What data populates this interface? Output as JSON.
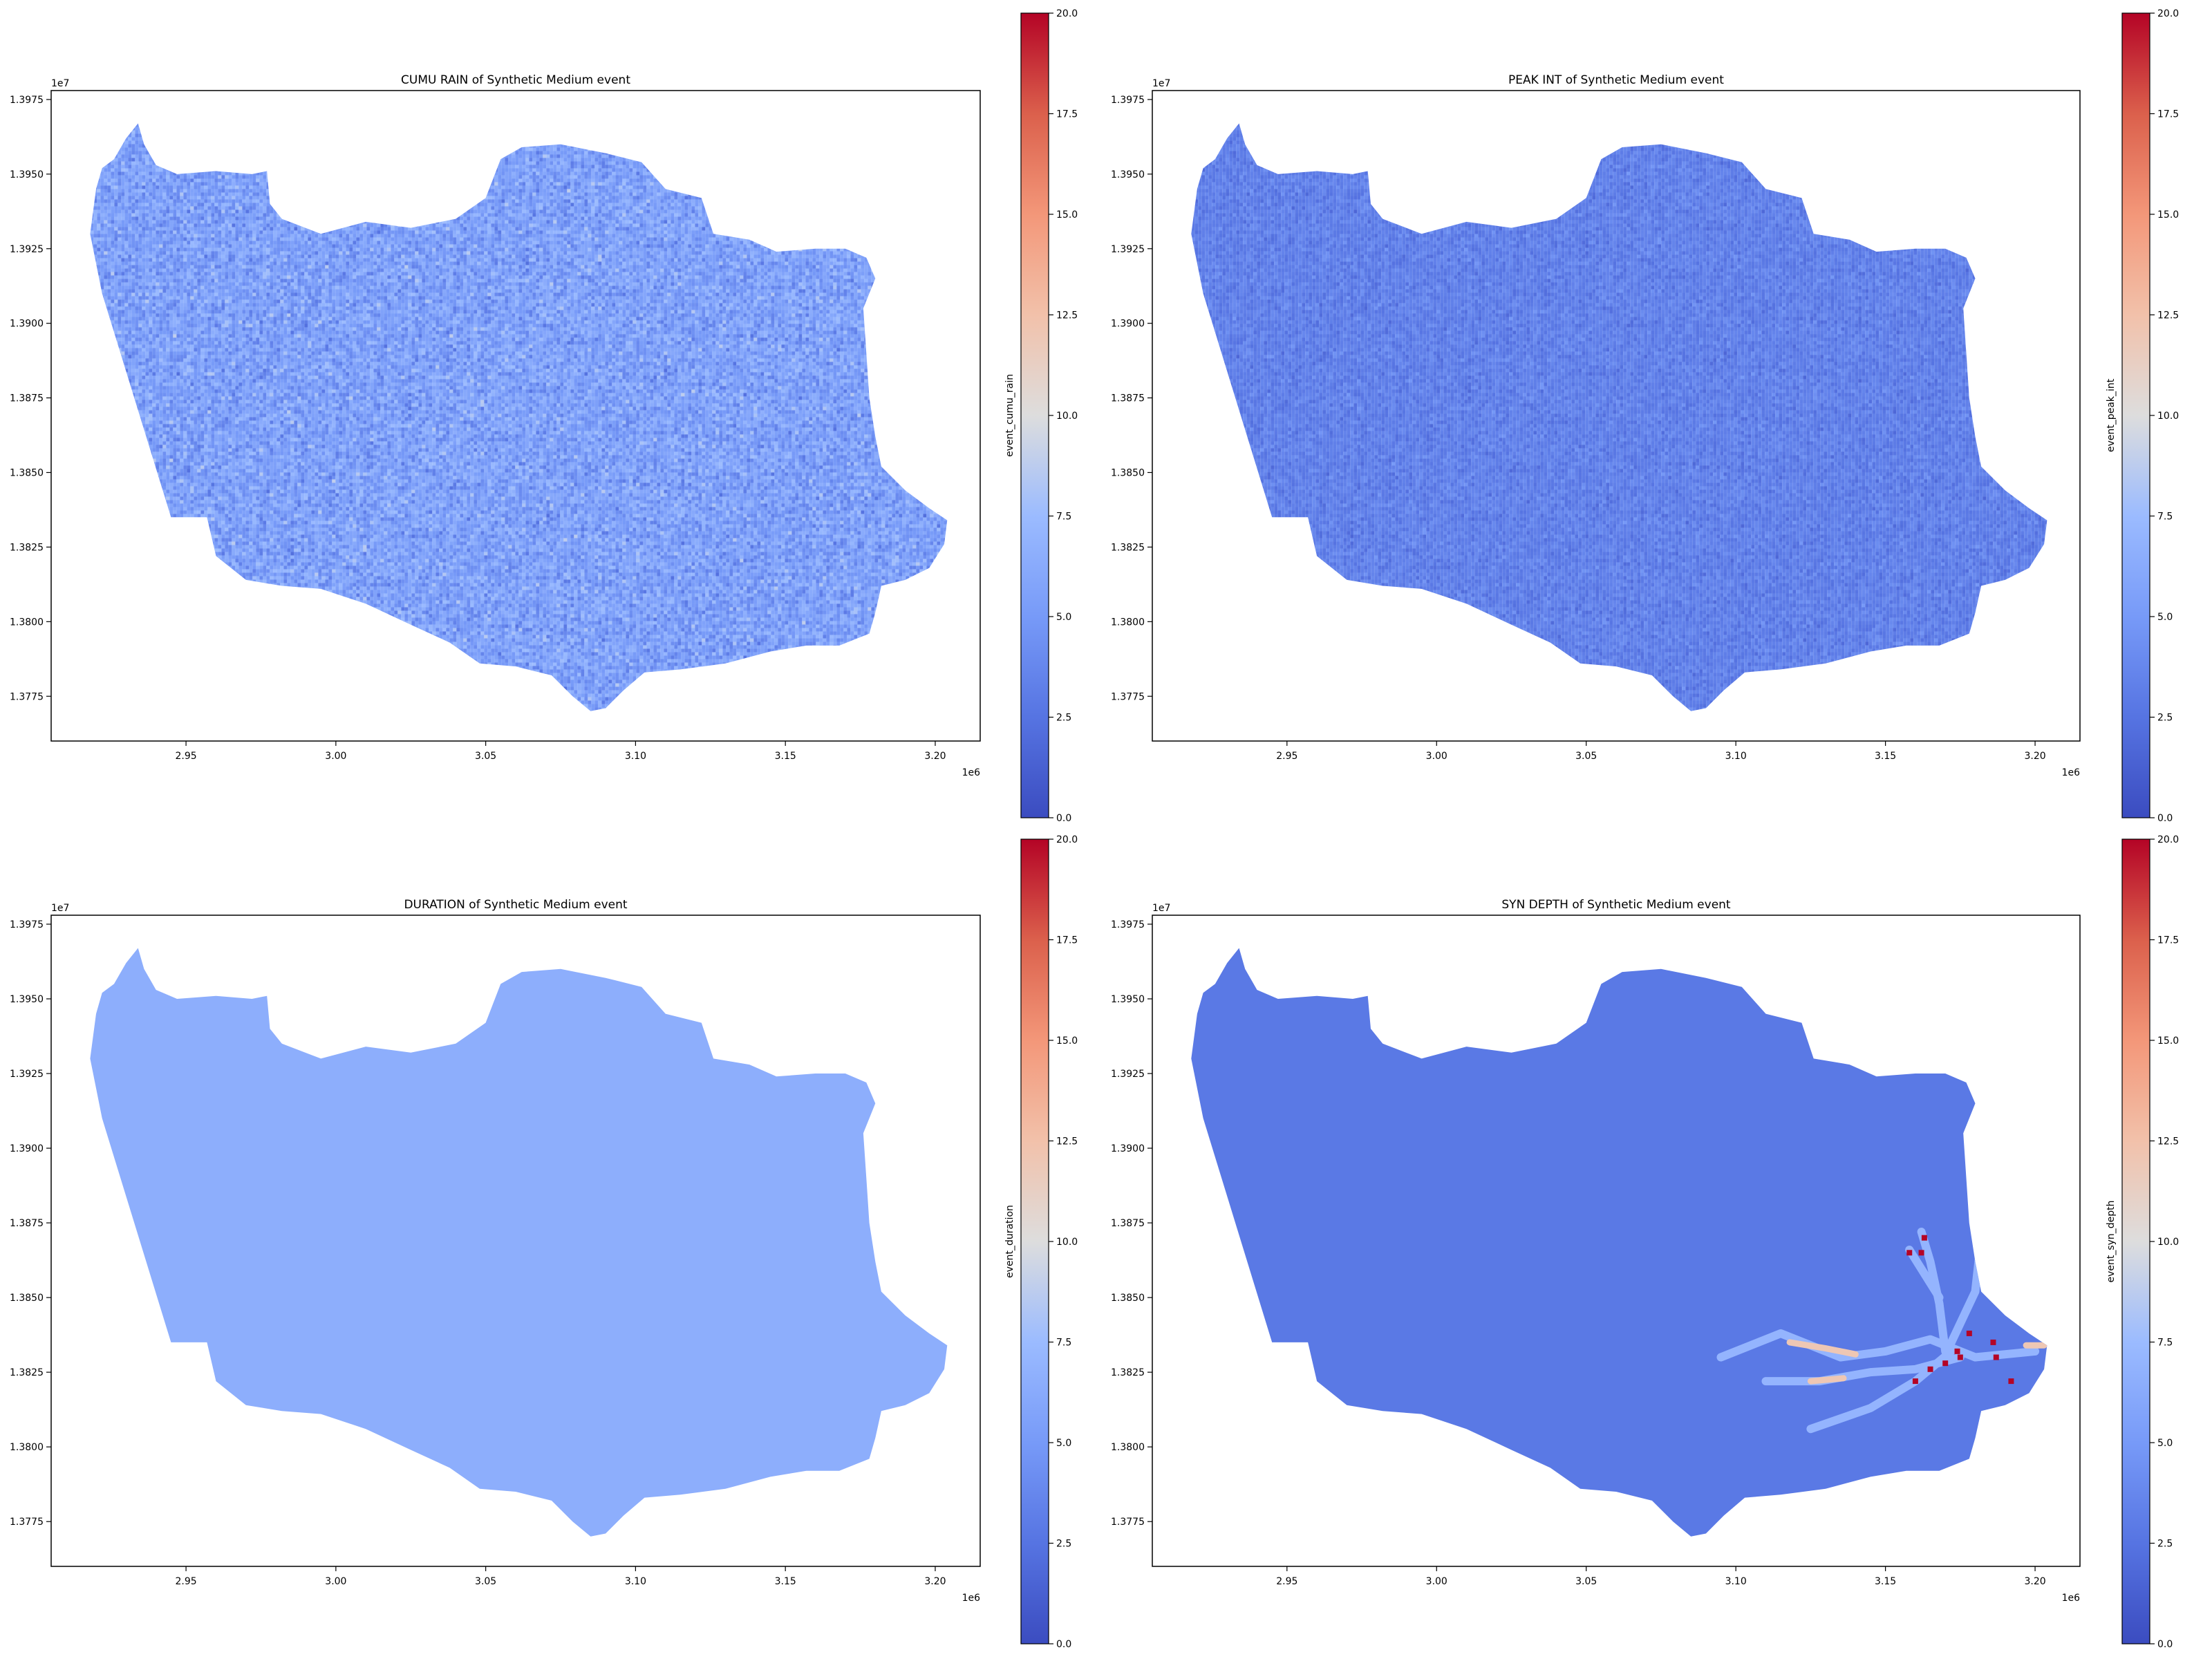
{
  "chart_data": [
    {
      "type": "heatmap",
      "title": "CUMU RAIN of Synthetic Medium event",
      "colorbar_label": "event_cumu_rain",
      "x_multiplier": "1e6",
      "y_multiplier": "1e7",
      "xlim": [
        2.905,
        3.215
      ],
      "ylim": [
        1.376,
        1.3978
      ],
      "x_ticks": [
        2.95,
        3.0,
        3.05,
        3.1,
        3.15,
        3.2
      ],
      "x_tick_labels": [
        "2.95",
        "3.00",
        "3.05",
        "3.10",
        "3.15",
        "3.20"
      ],
      "y_ticks": [
        1.3775,
        1.38,
        1.3825,
        1.385,
        1.3875,
        1.39,
        1.3925,
        1.395,
        1.3975
      ],
      "y_tick_labels": [
        "1.3775",
        "1.3800",
        "1.3825",
        "1.3850",
        "1.3875",
        "1.3900",
        "1.3925",
        "1.3950",
        "1.3975"
      ],
      "clim": [
        0,
        20
      ],
      "colorbar_ticks": [
        0.0,
        2.5,
        5.0,
        7.5,
        10.0,
        12.5,
        15.0,
        17.5,
        20.0
      ],
      "colorbar_tick_labels": [
        "0.0",
        "2.5",
        "5.0",
        "7.5",
        "10.0",
        "12.5",
        "15.0",
        "17.5",
        "20.0"
      ],
      "colormap": "coolwarm",
      "typical_value": 5.5,
      "value_spread": 1.8,
      "pattern": "noise",
      "grid": false
    },
    {
      "type": "heatmap",
      "title": "PEAK INT of Synthetic Medium event",
      "colorbar_label": "event_peak_int",
      "x_multiplier": "1e6",
      "y_multiplier": "1e7",
      "xlim": [
        2.905,
        3.215
      ],
      "ylim": [
        1.376,
        1.3978
      ],
      "x_ticks": [
        2.95,
        3.0,
        3.05,
        3.1,
        3.15,
        3.2
      ],
      "x_tick_labels": [
        "2.95",
        "3.00",
        "3.05",
        "3.10",
        "3.15",
        "3.20"
      ],
      "y_ticks": [
        1.3775,
        1.38,
        1.3825,
        1.385,
        1.3875,
        1.39,
        1.3925,
        1.395,
        1.3975
      ],
      "y_tick_labels": [
        "1.3775",
        "1.3800",
        "1.3825",
        "1.3850",
        "1.3875",
        "1.3900",
        "1.3925",
        "1.3950",
        "1.3975"
      ],
      "clim": [
        0,
        20
      ],
      "colorbar_ticks": [
        0.0,
        2.5,
        5.0,
        7.5,
        10.0,
        12.5,
        15.0,
        17.5,
        20.0
      ],
      "colorbar_tick_labels": [
        "0.0",
        "2.5",
        "5.0",
        "7.5",
        "10.0",
        "12.5",
        "15.0",
        "17.5",
        "20.0"
      ],
      "colormap": "coolwarm",
      "typical_value": 3.3,
      "value_spread": 0.9,
      "pattern": "noise",
      "grid": false
    },
    {
      "type": "heatmap",
      "title": "DURATION of Synthetic Medium event",
      "colorbar_label": "event_duration",
      "x_multiplier": "1e6",
      "y_multiplier": "1e7",
      "xlim": [
        2.905,
        3.215
      ],
      "ylim": [
        1.376,
        1.3978
      ],
      "x_ticks": [
        2.95,
        3.0,
        3.05,
        3.1,
        3.15,
        3.2
      ],
      "x_tick_labels": [
        "2.95",
        "3.00",
        "3.05",
        "3.10",
        "3.15",
        "3.20"
      ],
      "y_ticks": [
        1.3775,
        1.38,
        1.3825,
        1.385,
        1.3875,
        1.39,
        1.3925,
        1.395,
        1.3975
      ],
      "y_tick_labels": [
        "1.3775",
        "1.3800",
        "1.3825",
        "1.3850",
        "1.3875",
        "1.3900",
        "1.3925",
        "1.3950",
        "1.3975"
      ],
      "clim": [
        0,
        20
      ],
      "colorbar_ticks": [
        0.0,
        2.5,
        5.0,
        7.5,
        10.0,
        12.5,
        15.0,
        17.5,
        20.0
      ],
      "colorbar_tick_labels": [
        "0.0",
        "2.5",
        "5.0",
        "7.5",
        "10.0",
        "12.5",
        "15.0",
        "17.5",
        "20.0"
      ],
      "colormap": "coolwarm",
      "typical_value": 6.5,
      "value_spread": 0.1,
      "pattern": "uniform",
      "grid": false
    },
    {
      "type": "heatmap",
      "title": "SYN DEPTH of Synthetic Medium event",
      "colorbar_label": "event_syn_depth",
      "x_multiplier": "1e6",
      "y_multiplier": "1e7",
      "xlim": [
        2.905,
        3.215
      ],
      "ylim": [
        1.376,
        1.3978
      ],
      "x_ticks": [
        2.95,
        3.0,
        3.05,
        3.1,
        3.15,
        3.2
      ],
      "x_tick_labels": [
        "2.95",
        "3.00",
        "3.05",
        "3.10",
        "3.15",
        "3.20"
      ],
      "y_ticks": [
        1.3775,
        1.38,
        1.3825,
        1.385,
        1.3875,
        1.39,
        1.3925,
        1.395,
        1.3975
      ],
      "y_tick_labels": [
        "1.3775",
        "1.3800",
        "1.3825",
        "1.3850",
        "1.3875",
        "1.3900",
        "1.3925",
        "1.3950",
        "1.3975"
      ],
      "clim": [
        0,
        20
      ],
      "colorbar_ticks": [
        0.0,
        2.5,
        5.0,
        7.5,
        10.0,
        12.5,
        15.0,
        17.5,
        20.0
      ],
      "colorbar_tick_labels": [
        "0.0",
        "2.5",
        "5.0",
        "7.5",
        "10.0",
        "12.5",
        "15.0",
        "17.5",
        "20.0"
      ],
      "colormap": "coolwarm",
      "typical_value": 2.8,
      "value_spread": 0.15,
      "pattern": "channels",
      "channel_value": 7.0,
      "high_value": 12.0,
      "hotspot_value": 20.0,
      "channels": [
        [
          [
            3.095,
            1.383
          ],
          [
            3.115,
            1.3838
          ],
          [
            3.135,
            1.383
          ],
          [
            3.15,
            1.3832
          ],
          [
            3.165,
            1.3836
          ],
          [
            3.18,
            1.383
          ],
          [
            3.2,
            1.3832
          ]
        ],
        [
          [
            3.11,
            1.3822
          ],
          [
            3.128,
            1.3822
          ],
          [
            3.145,
            1.3825
          ],
          [
            3.16,
            1.3826
          ],
          [
            3.175,
            1.383
          ]
        ],
        [
          [
            3.125,
            1.3806
          ],
          [
            3.145,
            1.3813
          ],
          [
            3.16,
            1.3822
          ],
          [
            3.172,
            1.3832
          ]
        ],
        [
          [
            3.17,
            1.3832
          ],
          [
            3.168,
            1.3848
          ],
          [
            3.165,
            1.3862
          ],
          [
            3.162,
            1.3872
          ]
        ],
        [
          [
            3.172,
            1.3835
          ],
          [
            3.18,
            1.3852
          ],
          [
            3.182,
            1.387
          ]
        ],
        [
          [
            3.168,
            1.385
          ],
          [
            3.158,
            1.3866
          ]
        ]
      ],
      "high_segments": [
        [
          [
            3.118,
            1.3835
          ],
          [
            3.13,
            1.3833
          ],
          [
            3.14,
            1.3831
          ]
        ],
        [
          [
            3.125,
            1.3822
          ],
          [
            3.136,
            1.3823
          ]
        ],
        [
          [
            3.197,
            1.3834
          ],
          [
            3.203,
            1.3834
          ]
        ]
      ],
      "hotspots": [
        [
          3.158,
          1.3865
        ],
        [
          3.162,
          1.3865
        ],
        [
          3.163,
          1.387
        ],
        [
          3.174,
          1.3832
        ],
        [
          3.178,
          1.3838
        ],
        [
          3.187,
          1.383
        ],
        [
          3.165,
          1.3826
        ],
        [
          3.17,
          1.3828
        ],
        [
          3.192,
          1.3822
        ],
        [
          3.16,
          1.3822
        ],
        [
          3.175,
          1.383
        ],
        [
          3.186,
          1.3835
        ]
      ],
      "grid": false
    }
  ],
  "basin_outline": [
    [
      2.92,
      1.3945
    ],
    [
      2.922,
      1.3952
    ],
    [
      2.926,
      1.3955
    ],
    [
      2.93,
      1.3962
    ],
    [
      2.934,
      1.3967
    ],
    [
      2.936,
      1.396
    ],
    [
      2.94,
      1.3953
    ],
    [
      2.947,
      1.395
    ],
    [
      2.96,
      1.3951
    ],
    [
      2.972,
      1.395
    ],
    [
      2.977,
      1.3951
    ],
    [
      2.978,
      1.394
    ],
    [
      2.982,
      1.3935
    ],
    [
      2.995,
      1.393
    ],
    [
      3.01,
      1.3934
    ],
    [
      3.025,
      1.3932
    ],
    [
      3.04,
      1.3935
    ],
    [
      3.05,
      1.3942
    ],
    [
      3.055,
      1.3955
    ],
    [
      3.062,
      1.3959
    ],
    [
      3.075,
      1.396
    ],
    [
      3.09,
      1.3957
    ],
    [
      3.102,
      1.3954
    ],
    [
      3.11,
      1.3945
    ],
    [
      3.122,
      1.3942
    ],
    [
      3.126,
      1.393
    ],
    [
      3.138,
      1.3928
    ],
    [
      3.147,
      1.3924
    ],
    [
      3.16,
      1.3925
    ],
    [
      3.17,
      1.3925
    ],
    [
      3.177,
      1.3922
    ],
    [
      3.18,
      1.3915
    ],
    [
      3.176,
      1.3905
    ],
    [
      3.177,
      1.389
    ],
    [
      3.178,
      1.3875
    ],
    [
      3.18,
      1.3862
    ],
    [
      3.182,
      1.3852
    ],
    [
      3.19,
      1.3844
    ],
    [
      3.198,
      1.3838
    ],
    [
      3.204,
      1.3834
    ],
    [
      3.203,
      1.3826
    ],
    [
      3.198,
      1.3818
    ],
    [
      3.19,
      1.3814
    ],
    [
      3.182,
      1.3812
    ],
    [
      3.18,
      1.3803
    ],
    [
      3.178,
      1.3796
    ],
    [
      3.168,
      1.3792
    ],
    [
      3.157,
      1.3792
    ],
    [
      3.145,
      1.379
    ],
    [
      3.13,
      1.3786
    ],
    [
      3.115,
      1.3784
    ],
    [
      3.103,
      1.3783
    ],
    [
      3.096,
      1.3777
    ],
    [
      3.09,
      1.3771
    ],
    [
      3.085,
      1.377
    ],
    [
      3.079,
      1.3775
    ],
    [
      3.072,
      1.3782
    ],
    [
      3.06,
      1.3785
    ],
    [
      3.048,
      1.3786
    ],
    [
      3.038,
      1.3793
    ],
    [
      3.025,
      1.3799
    ],
    [
      3.01,
      1.3806
    ],
    [
      2.995,
      1.3811
    ],
    [
      2.982,
      1.3812
    ],
    [
      2.97,
      1.3814
    ],
    [
      2.96,
      1.3822
    ],
    [
      2.957,
      1.3835
    ],
    [
      2.945,
      1.3835
    ],
    [
      2.922,
      1.391
    ],
    [
      2.918,
      1.393
    ]
  ]
}
